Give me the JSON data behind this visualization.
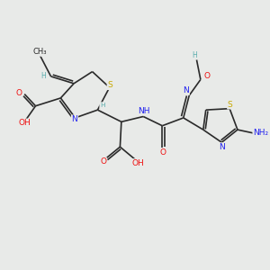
{
  "bg_color": "#e8eae8",
  "bond_color": "#2a2a2a",
  "bond_lw": 1.2,
  "atom_colors": {
    "C": "#2a2a2a",
    "H": "#5aadad",
    "N": "#2020ee",
    "O": "#ee1010",
    "S": "#c8a800",
    "NH2": "#2020ee"
  },
  "font_size": 6.5,
  "fig_w": 3.0,
  "fig_h": 3.0,
  "dpi": 100,
  "xlim": [
    0,
    10
  ],
  "ylim": [
    0,
    10
  ]
}
